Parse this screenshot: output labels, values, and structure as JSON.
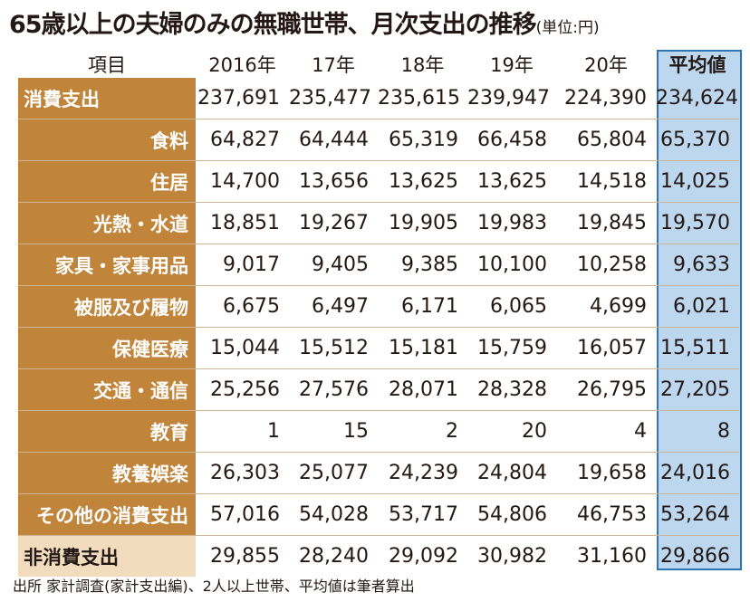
{
  "title": {
    "main": "65歳以上の夫婦のみの無職世帯、月次支出の推移",
    "unit": "(単位:円)"
  },
  "source": "出所 家計調査(家計支出編)、2人以上世帯、平均値は筆者算出",
  "colors": {
    "label_bg": "#c0853a",
    "label_bg_light": "#f2dcbe",
    "average_bg": "#bdd7ee",
    "average_border": "#2f75b5"
  },
  "chart_data": {
    "type": "table",
    "columns": [
      "項目",
      "2016年",
      "17年",
      "18年",
      "19年",
      "20年",
      "平均値"
    ],
    "rows": [
      {
        "label": "消費支出",
        "values": [
          "237,691",
          "235,477",
          "235,615",
          "239,947",
          "224,390",
          "234,624"
        ]
      },
      {
        "label": "食料",
        "values": [
          "64,827",
          "64,444",
          "65,319",
          "66,458",
          "65,804",
          "65,370"
        ]
      },
      {
        "label": "住居",
        "values": [
          "14,700",
          "13,656",
          "13,625",
          "13,625",
          "14,518",
          "14,025"
        ]
      },
      {
        "label": "光熱・水道",
        "values": [
          "18,851",
          "19,267",
          "19,905",
          "19,983",
          "19,845",
          "19,570"
        ]
      },
      {
        "label": "家具・家事用品",
        "values": [
          "9,017",
          "9,405",
          "9,385",
          "10,100",
          "10,258",
          "9,633"
        ]
      },
      {
        "label": "被服及び履物",
        "values": [
          "6,675",
          "6,497",
          "6,171",
          "6,065",
          "4,699",
          "6,021"
        ]
      },
      {
        "label": "保健医療",
        "values": [
          "15,044",
          "15,512",
          "15,181",
          "15,759",
          "16,057",
          "15,511"
        ]
      },
      {
        "label": "交通・通信",
        "values": [
          "25,256",
          "27,576",
          "28,071",
          "28,328",
          "26,795",
          "27,205"
        ]
      },
      {
        "label": "教育",
        "values": [
          "1",
          "15",
          "2",
          "20",
          "4",
          "8"
        ]
      },
      {
        "label": "教養娯楽",
        "values": [
          "26,303",
          "25,077",
          "24,239",
          "24,804",
          "19,658",
          "24,016"
        ]
      },
      {
        "label": "その他の消費支出",
        "values": [
          "57,016",
          "54,028",
          "53,717",
          "54,806",
          "46,753",
          "53,264"
        ]
      },
      {
        "label": "非消費支出",
        "values": [
          "29,855",
          "28,240",
          "29,092",
          "30,982",
          "31,160",
          "29,866"
        ]
      }
    ]
  }
}
